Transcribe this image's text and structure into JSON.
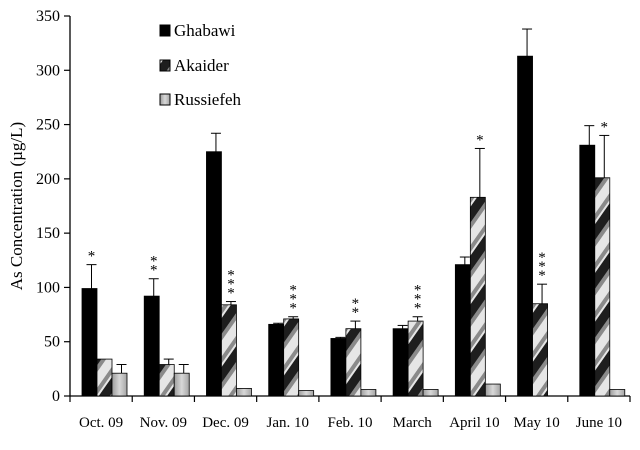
{
  "chart_data": {
    "type": "bar",
    "categories": [
      "Oct. 09",
      "Nov. 09",
      "Dec. 09",
      "Jan. 10",
      "Feb. 10",
      "March",
      "April 10",
      "May 10",
      "June 10"
    ],
    "series": [
      {
        "name": "Ghabawi",
        "values": [
          99,
          92,
          225,
          66,
          53,
          62,
          121,
          313,
          231
        ],
        "errors": [
          22,
          16,
          17,
          1,
          1,
          3,
          7,
          25,
          18
        ],
        "stars": [
          "*",
          "**",
          "",
          "",
          "",
          "",
          "",
          "",
          ""
        ],
        "color": "#000000"
      },
      {
        "name": "Akaider",
        "values": [
          34,
          29,
          84,
          71,
          62,
          69,
          183,
          85,
          201
        ],
        "errors": [
          0,
          5,
          3,
          2,
          7,
          4,
          45,
          18,
          39
        ],
        "stars": [
          "",
          "",
          "***",
          "***",
          "**",
          "***",
          "*",
          "***",
          "*"
        ],
        "color": "#bdbdbd"
      },
      {
        "name": "Russiefeh",
        "values": [
          21,
          21,
          7,
          5,
          6,
          6,
          11,
          0,
          6
        ],
        "errors": [
          8,
          8,
          0,
          0,
          0,
          0,
          0,
          0,
          0
        ],
        "stars": [
          "",
          "",
          "",
          "",
          "",
          "",
          "",
          "",
          ""
        ],
        "color": "#c8c8c8"
      }
    ],
    "ylabel": "As Concentration (µg/L)",
    "xlabel": "",
    "ylim": [
      0,
      350
    ],
    "yticks": [
      "0",
      "50",
      "100",
      "150",
      "200",
      "250",
      "300",
      "350"
    ],
    "grid": false,
    "legend": "top-left"
  }
}
